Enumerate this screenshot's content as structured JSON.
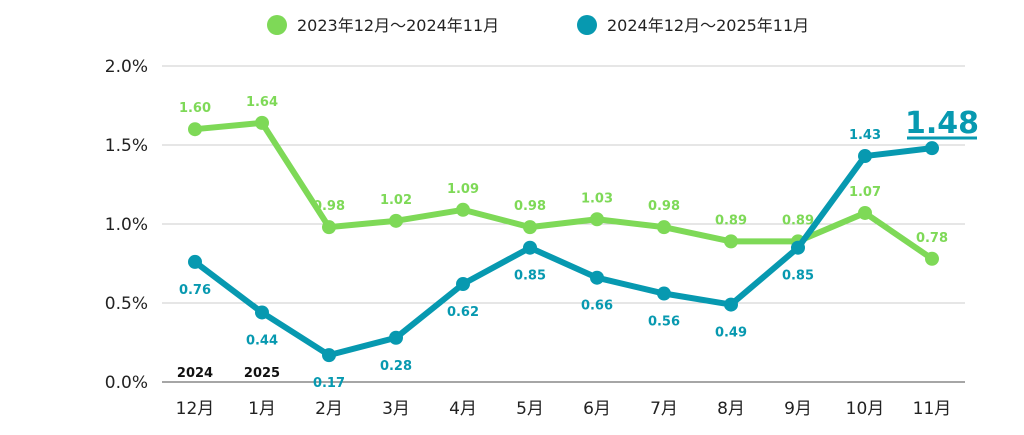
{
  "chart_data": {
    "type": "line",
    "title": "",
    "xlabel": "",
    "ylabel": "",
    "categories": [
      "12月",
      "1月",
      "2月",
      "3月",
      "4月",
      "5月",
      "6月",
      "7月",
      "8月",
      "9月",
      "10月",
      "11月"
    ],
    "year_labels": [
      "2024",
      "2025"
    ],
    "ylim": [
      0,
      2.0
    ],
    "yticks": [
      "0.0%",
      "0.5%",
      "1.0%",
      "1.5%",
      "2.0%"
    ],
    "ytick_values": [
      0,
      0.5,
      1.0,
      1.5,
      2.0
    ],
    "grid": true,
    "legend_position": "top",
    "series": [
      {
        "name": "2023年12月～2024年11月",
        "color": "#7ed957",
        "values": [
          1.6,
          1.64,
          0.98,
          1.02,
          1.09,
          0.98,
          1.03,
          0.98,
          0.89,
          0.89,
          1.07,
          0.78
        ],
        "labels": [
          "1.60",
          "1.64",
          "0.98",
          "1.02",
          "1.09",
          "0.98",
          "1.03",
          "0.98",
          "0.89",
          "0.89",
          "1.07",
          "0.78"
        ]
      },
      {
        "name": "2024年12月～2025年11月",
        "color": "#0799b0",
        "values": [
          0.76,
          0.44,
          0.17,
          0.28,
          0.62,
          0.85,
          0.66,
          0.56,
          0.49,
          0.85,
          1.43,
          1.48
        ],
        "labels": [
          "0.76",
          "0.44",
          "0.17",
          "0.28",
          "0.62",
          "0.85",
          "0.66",
          "0.56",
          "0.49",
          "0.85",
          "1.43",
          "1.48"
        ]
      }
    ],
    "highlight_label": "1.48"
  }
}
